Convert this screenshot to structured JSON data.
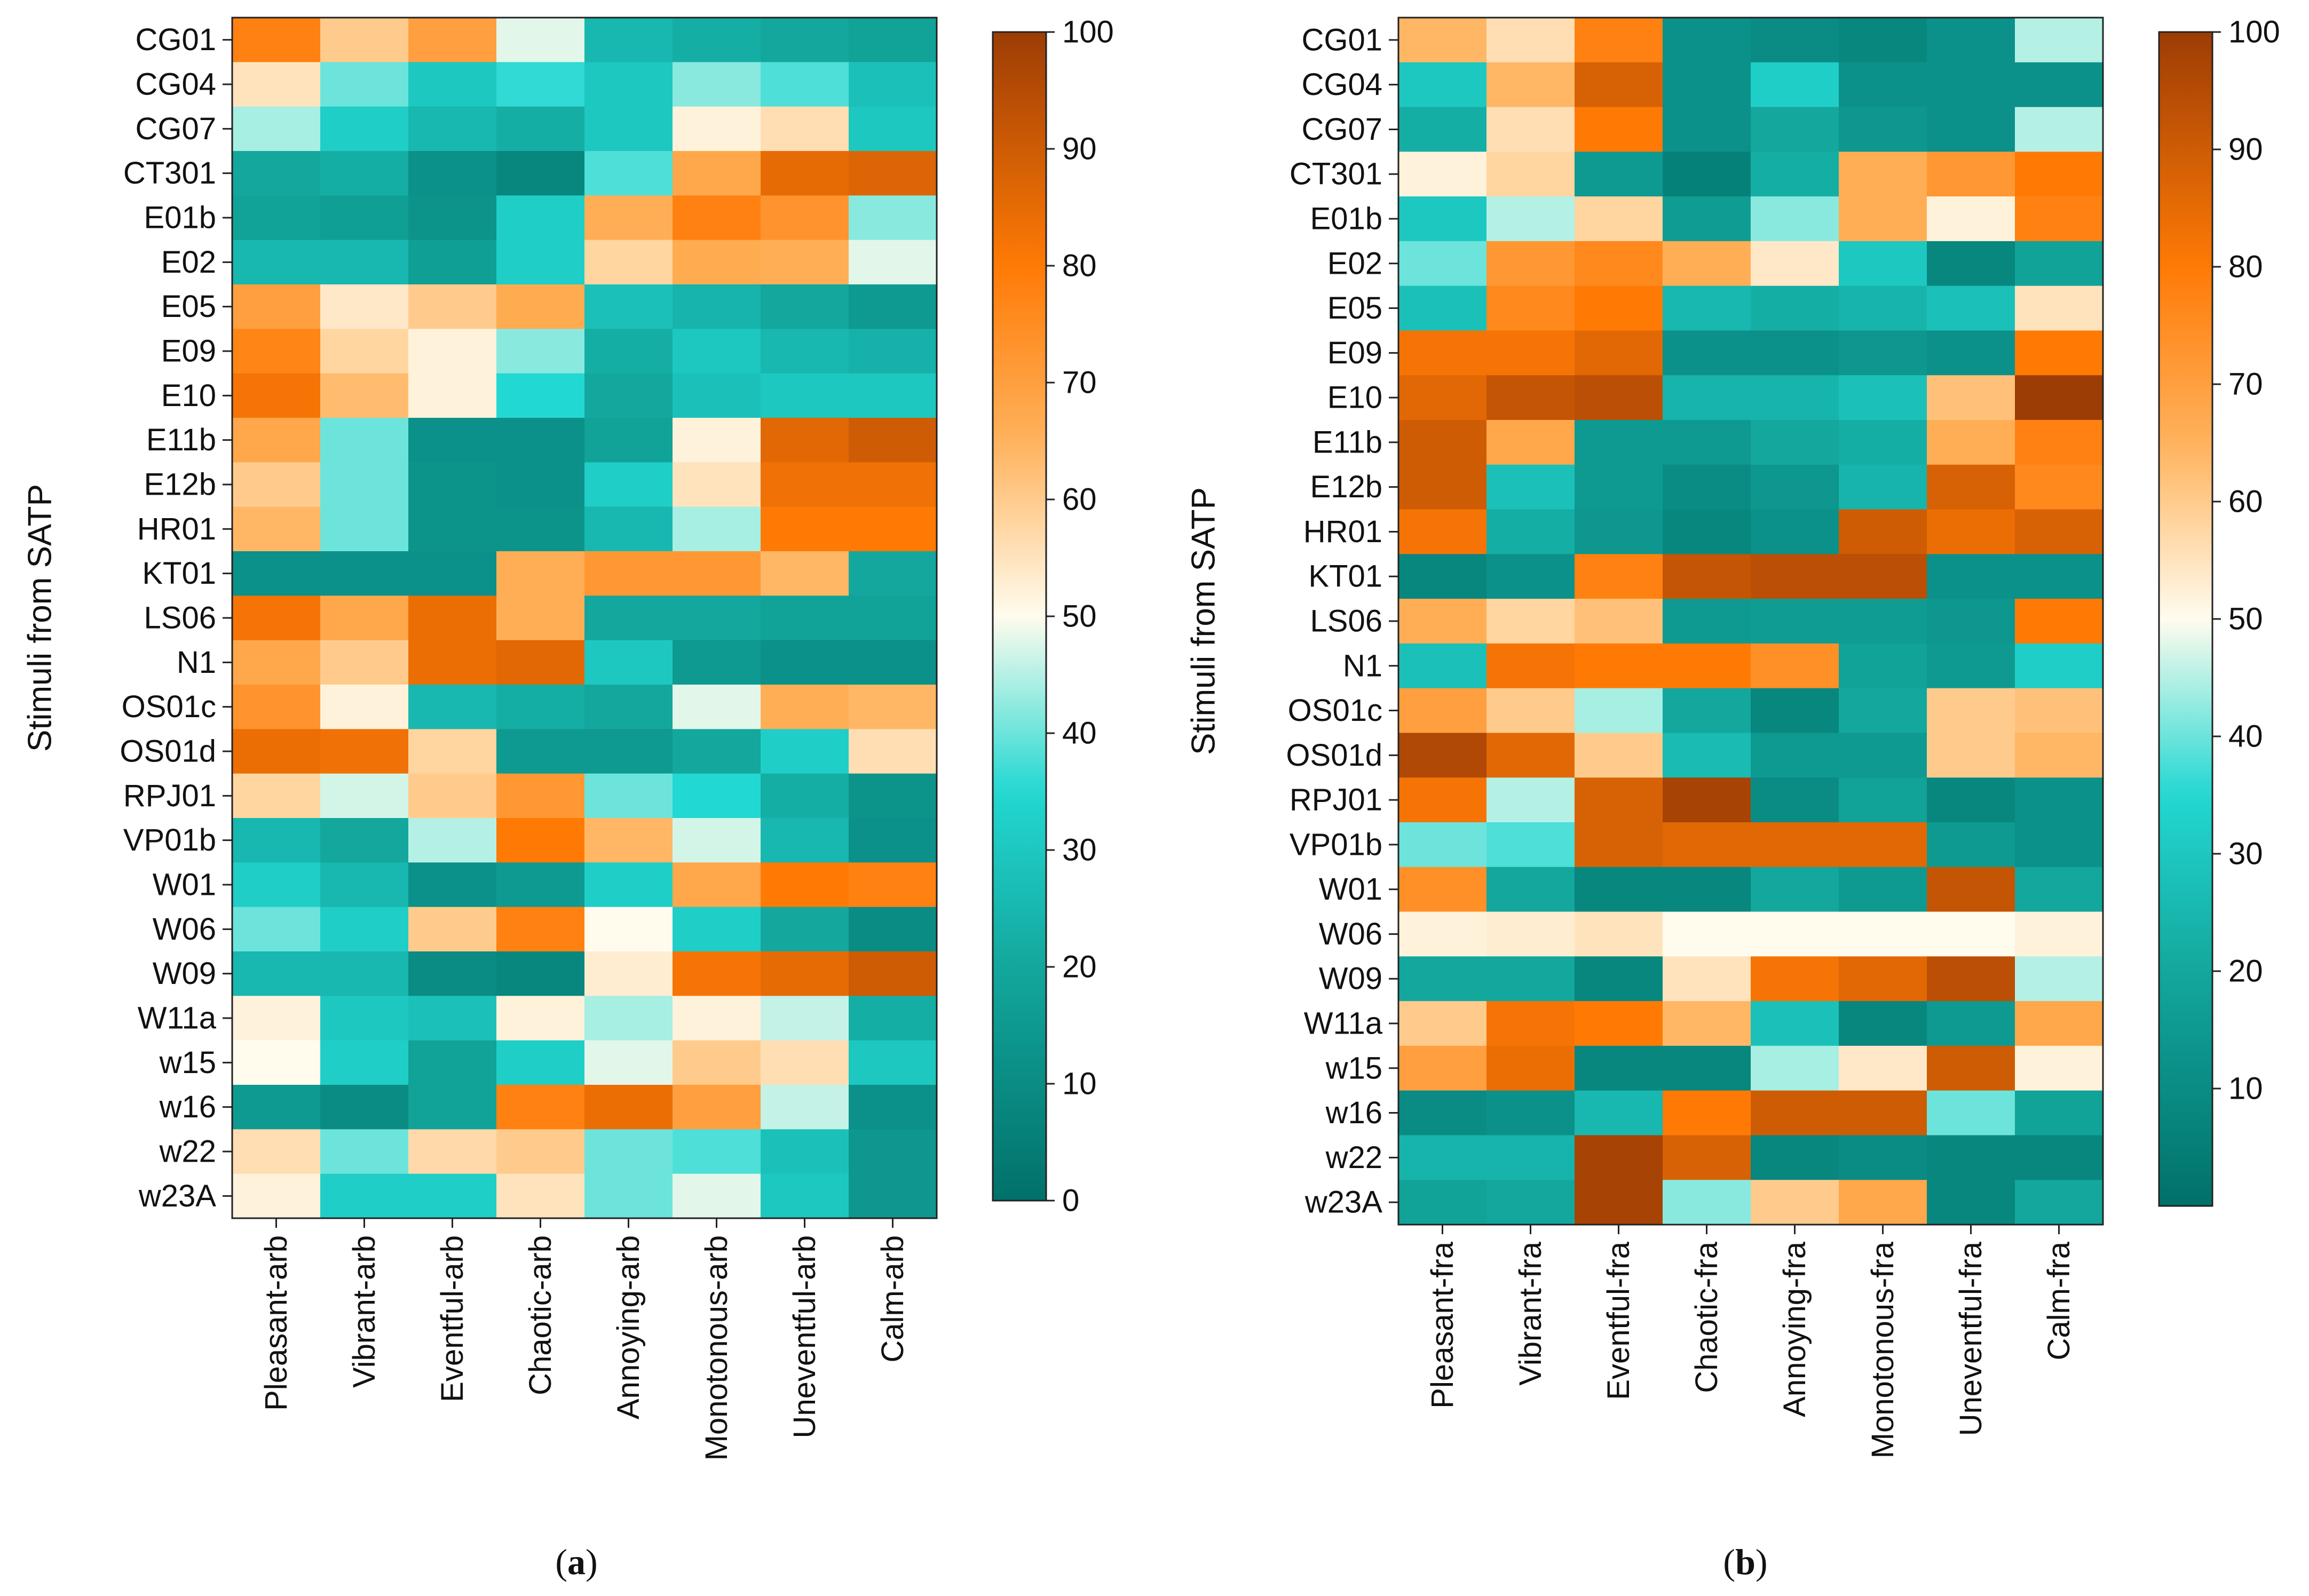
{
  "figure_type": "dual heatmap",
  "colormap": {
    "name": "teal-white-orange diverging",
    "stops": [
      {
        "value": 0,
        "color": "#00716a"
      },
      {
        "value": 20,
        "color": "#13a79d"
      },
      {
        "value": 35,
        "color": "#22d8d2"
      },
      {
        "value": 50,
        "color": "#fffcee"
      },
      {
        "value": 65,
        "color": "#ffb25c"
      },
      {
        "value": 80,
        "color": "#ff7a05"
      },
      {
        "value": 100,
        "color": "#9c3d05"
      }
    ]
  },
  "chart_data": [
    {
      "type": "heatmap",
      "panel_label": "a",
      "ylabel": "Stimuli from SATP",
      "rows": [
        "CG01",
        "CG04",
        "CG07",
        "CT301",
        "E01b",
        "E02",
        "E05",
        "E09",
        "E10",
        "E11b",
        "E12b",
        "HR01",
        "KT01",
        "LS06",
        "N1",
        "OS01c",
        "OS01d",
        "RPJ01",
        "VP01b",
        "W01",
        "W06",
        "W09",
        "W11a",
        "w15",
        "w16",
        "w22",
        "w23A"
      ],
      "columns": [
        "Pleasant-arb",
        "Vibrant-arb",
        "Eventful-arb",
        "Chaotic-arb",
        "Annoying-arb",
        "Monotonous-arb",
        "Uneventful-arb",
        "Calm-arb"
      ],
      "values": [
        [
          78,
          60,
          70,
          48,
          25,
          22,
          20,
          18
        ],
        [
          55,
          40,
          30,
          36,
          30,
          42,
          38,
          28
        ],
        [
          44,
          32,
          25,
          22,
          30,
          52,
          56,
          30
        ],
        [
          20,
          22,
          12,
          8,
          38,
          68,
          85,
          87
        ],
        [
          18,
          17,
          13,
          32,
          66,
          78,
          73,
          42
        ],
        [
          25,
          25,
          17,
          32,
          58,
          67,
          66,
          48
        ],
        [
          70,
          54,
          60,
          67,
          28,
          24,
          20,
          15
        ],
        [
          77,
          58,
          52,
          42,
          22,
          30,
          25,
          23
        ],
        [
          82,
          63,
          52,
          35,
          20,
          28,
          30,
          30
        ],
        [
          68,
          40,
          12,
          12,
          18,
          52,
          86,
          90
        ],
        [
          60,
          40,
          13,
          12,
          32,
          55,
          83,
          83
        ],
        [
          64,
          40,
          13,
          13,
          25,
          44,
          80,
          80
        ],
        [
          12,
          12,
          12,
          66,
          72,
          72,
          64,
          20
        ],
        [
          82,
          68,
          84,
          66,
          20,
          20,
          18,
          18
        ],
        [
          68,
          60,
          84,
          86,
          30,
          15,
          12,
          12
        ],
        [
          73,
          52,
          25,
          22,
          20,
          48,
          66,
          64
        ],
        [
          84,
          83,
          58,
          15,
          15,
          20,
          32,
          56
        ],
        [
          58,
          47,
          60,
          72,
          40,
          35,
          22,
          13
        ],
        [
          25,
          20,
          45,
          80,
          64,
          47,
          25,
          12
        ],
        [
          32,
          25,
          12,
          15,
          32,
          68,
          80,
          78
        ],
        [
          40,
          32,
          60,
          78,
          50,
          32,
          20,
          10
        ],
        [
          25,
          25,
          10,
          8,
          53,
          82,
          85,
          90
        ],
        [
          52,
          30,
          28,
          52,
          44,
          52,
          46,
          22
        ],
        [
          50,
          32,
          18,
          32,
          48,
          60,
          56,
          30
        ],
        [
          15,
          10,
          18,
          78,
          84,
          70,
          46,
          12
        ],
        [
          56,
          40,
          57,
          60,
          40,
          38,
          28,
          14
        ],
        [
          52,
          32,
          32,
          55,
          40,
          48,
          30,
          14
        ]
      ],
      "colorbar": {
        "ticks": [
          0,
          10,
          20,
          30,
          40,
          50,
          60,
          70,
          80,
          90,
          100
        ],
        "min": 0,
        "max": 100
      },
      "caption": "(a)"
    },
    {
      "type": "heatmap",
      "panel_label": "b",
      "ylabel": "Stimuli from SATP",
      "rows": [
        "CG01",
        "CG04",
        "CG07",
        "CT301",
        "E01b",
        "E02",
        "E05",
        "E09",
        "E10",
        "E11b",
        "E12b",
        "HR01",
        "KT01",
        "LS06",
        "N1",
        "OS01c",
        "OS01d",
        "RPJ01",
        "VP01b",
        "W01",
        "W06",
        "W09",
        "W11a",
        "w15",
        "w16",
        "w22",
        "w23A"
      ],
      "columns": [
        "Pleasant-fra",
        "Vibrant-fra",
        "Eventful-fra",
        "Chaotic-fra",
        "Annoying-fra",
        "Monotonous-fra",
        "Uneventful-fra",
        "Calm-fra"
      ],
      "values": [
        [
          64,
          56,
          78,
          12,
          10,
          8,
          12,
          45
        ],
        [
          30,
          64,
          88,
          12,
          32,
          12,
          12,
          12
        ],
        [
          22,
          56,
          80,
          12,
          20,
          14,
          12,
          45
        ],
        [
          52,
          58,
          15,
          6,
          22,
          66,
          72,
          80
        ],
        [
          30,
          45,
          58,
          16,
          42,
          66,
          52,
          78
        ],
        [
          40,
          72,
          76,
          66,
          54,
          30,
          8,
          18
        ],
        [
          28,
          76,
          80,
          25,
          22,
          24,
          28,
          55
        ],
        [
          82,
          82,
          86,
          12,
          12,
          14,
          12,
          80
        ],
        [
          86,
          92,
          94,
          24,
          24,
          28,
          62,
          100
        ],
        [
          90,
          68,
          15,
          15,
          20,
          22,
          66,
          78
        ],
        [
          90,
          28,
          15,
          10,
          14,
          24,
          88,
          76
        ],
        [
          82,
          22,
          14,
          8,
          12,
          90,
          84,
          88
        ],
        [
          8,
          12,
          78,
          92,
          94,
          94,
          12,
          12
        ],
        [
          66,
          58,
          62,
          15,
          16,
          16,
          14,
          80
        ],
        [
          28,
          82,
          80,
          80,
          74,
          18,
          15,
          32
        ],
        [
          70,
          60,
          44,
          20,
          8,
          20,
          60,
          62
        ],
        [
          96,
          86,
          60,
          26,
          15,
          15,
          60,
          64
        ],
        [
          82,
          45,
          88,
          98,
          10,
          18,
          8,
          12
        ],
        [
          40,
          38,
          88,
          86,
          86,
          86,
          15,
          12
        ],
        [
          74,
          20,
          8,
          8,
          20,
          15,
          92,
          20
        ],
        [
          52,
          53,
          55,
          50,
          50,
          50,
          50,
          52
        ],
        [
          20,
          20,
          8,
          55,
          82,
          86,
          94,
          45
        ],
        [
          60,
          82,
          80,
          64,
          28,
          8,
          15,
          68
        ],
        [
          70,
          84,
          8,
          8,
          44,
          54,
          90,
          52
        ],
        [
          10,
          12,
          25,
          80,
          90,
          90,
          40,
          18
        ],
        [
          24,
          24,
          98,
          88,
          8,
          10,
          8,
          8
        ],
        [
          18,
          20,
          98,
          42,
          60,
          68,
          8,
          20
        ]
      ],
      "colorbar": {
        "ticks": [
          10,
          20,
          30,
          40,
          50,
          60,
          70,
          80,
          90,
          100
        ],
        "min": 0,
        "max": 100
      },
      "caption": "(b)"
    }
  ]
}
